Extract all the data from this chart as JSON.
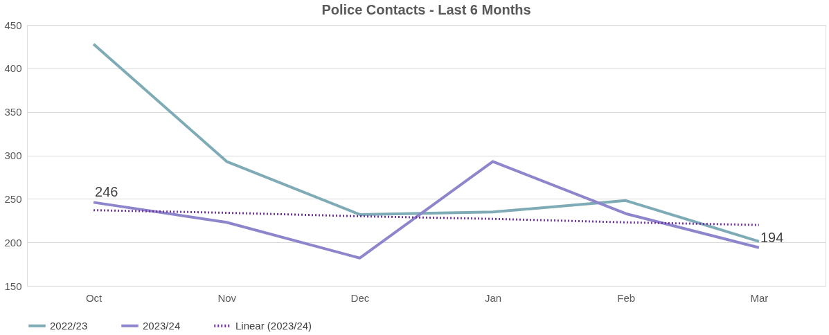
{
  "chart_data": {
    "type": "line",
    "title": "Police Contacts - Last 6 Months",
    "categories": [
      "Oct",
      "Nov",
      "Dec",
      "Jan",
      "Feb",
      "Mar"
    ],
    "series": [
      {
        "name": "2022/23",
        "color": "#7eabb5",
        "values": [
          428,
          293,
          232,
          235,
          248,
          201
        ]
      },
      {
        "name": "2023/24",
        "color": "#8e86cc",
        "values": [
          246,
          223,
          182,
          293,
          233,
          194
        ],
        "value_labels": [
          "246",
          null,
          null,
          null,
          null,
          "194"
        ]
      },
      {
        "name": "Linear (2023/24)",
        "color": "#7030a0",
        "line_style": "dotted",
        "values": [
          237,
          234,
          230,
          227,
          223,
          220
        ]
      }
    ],
    "ylim": [
      150,
      450
    ],
    "yticks": [
      150,
      200,
      250,
      300,
      350,
      400,
      450
    ],
    "grid": "y",
    "legend": "bottom",
    "marker": "none",
    "line_style": "solid"
  }
}
